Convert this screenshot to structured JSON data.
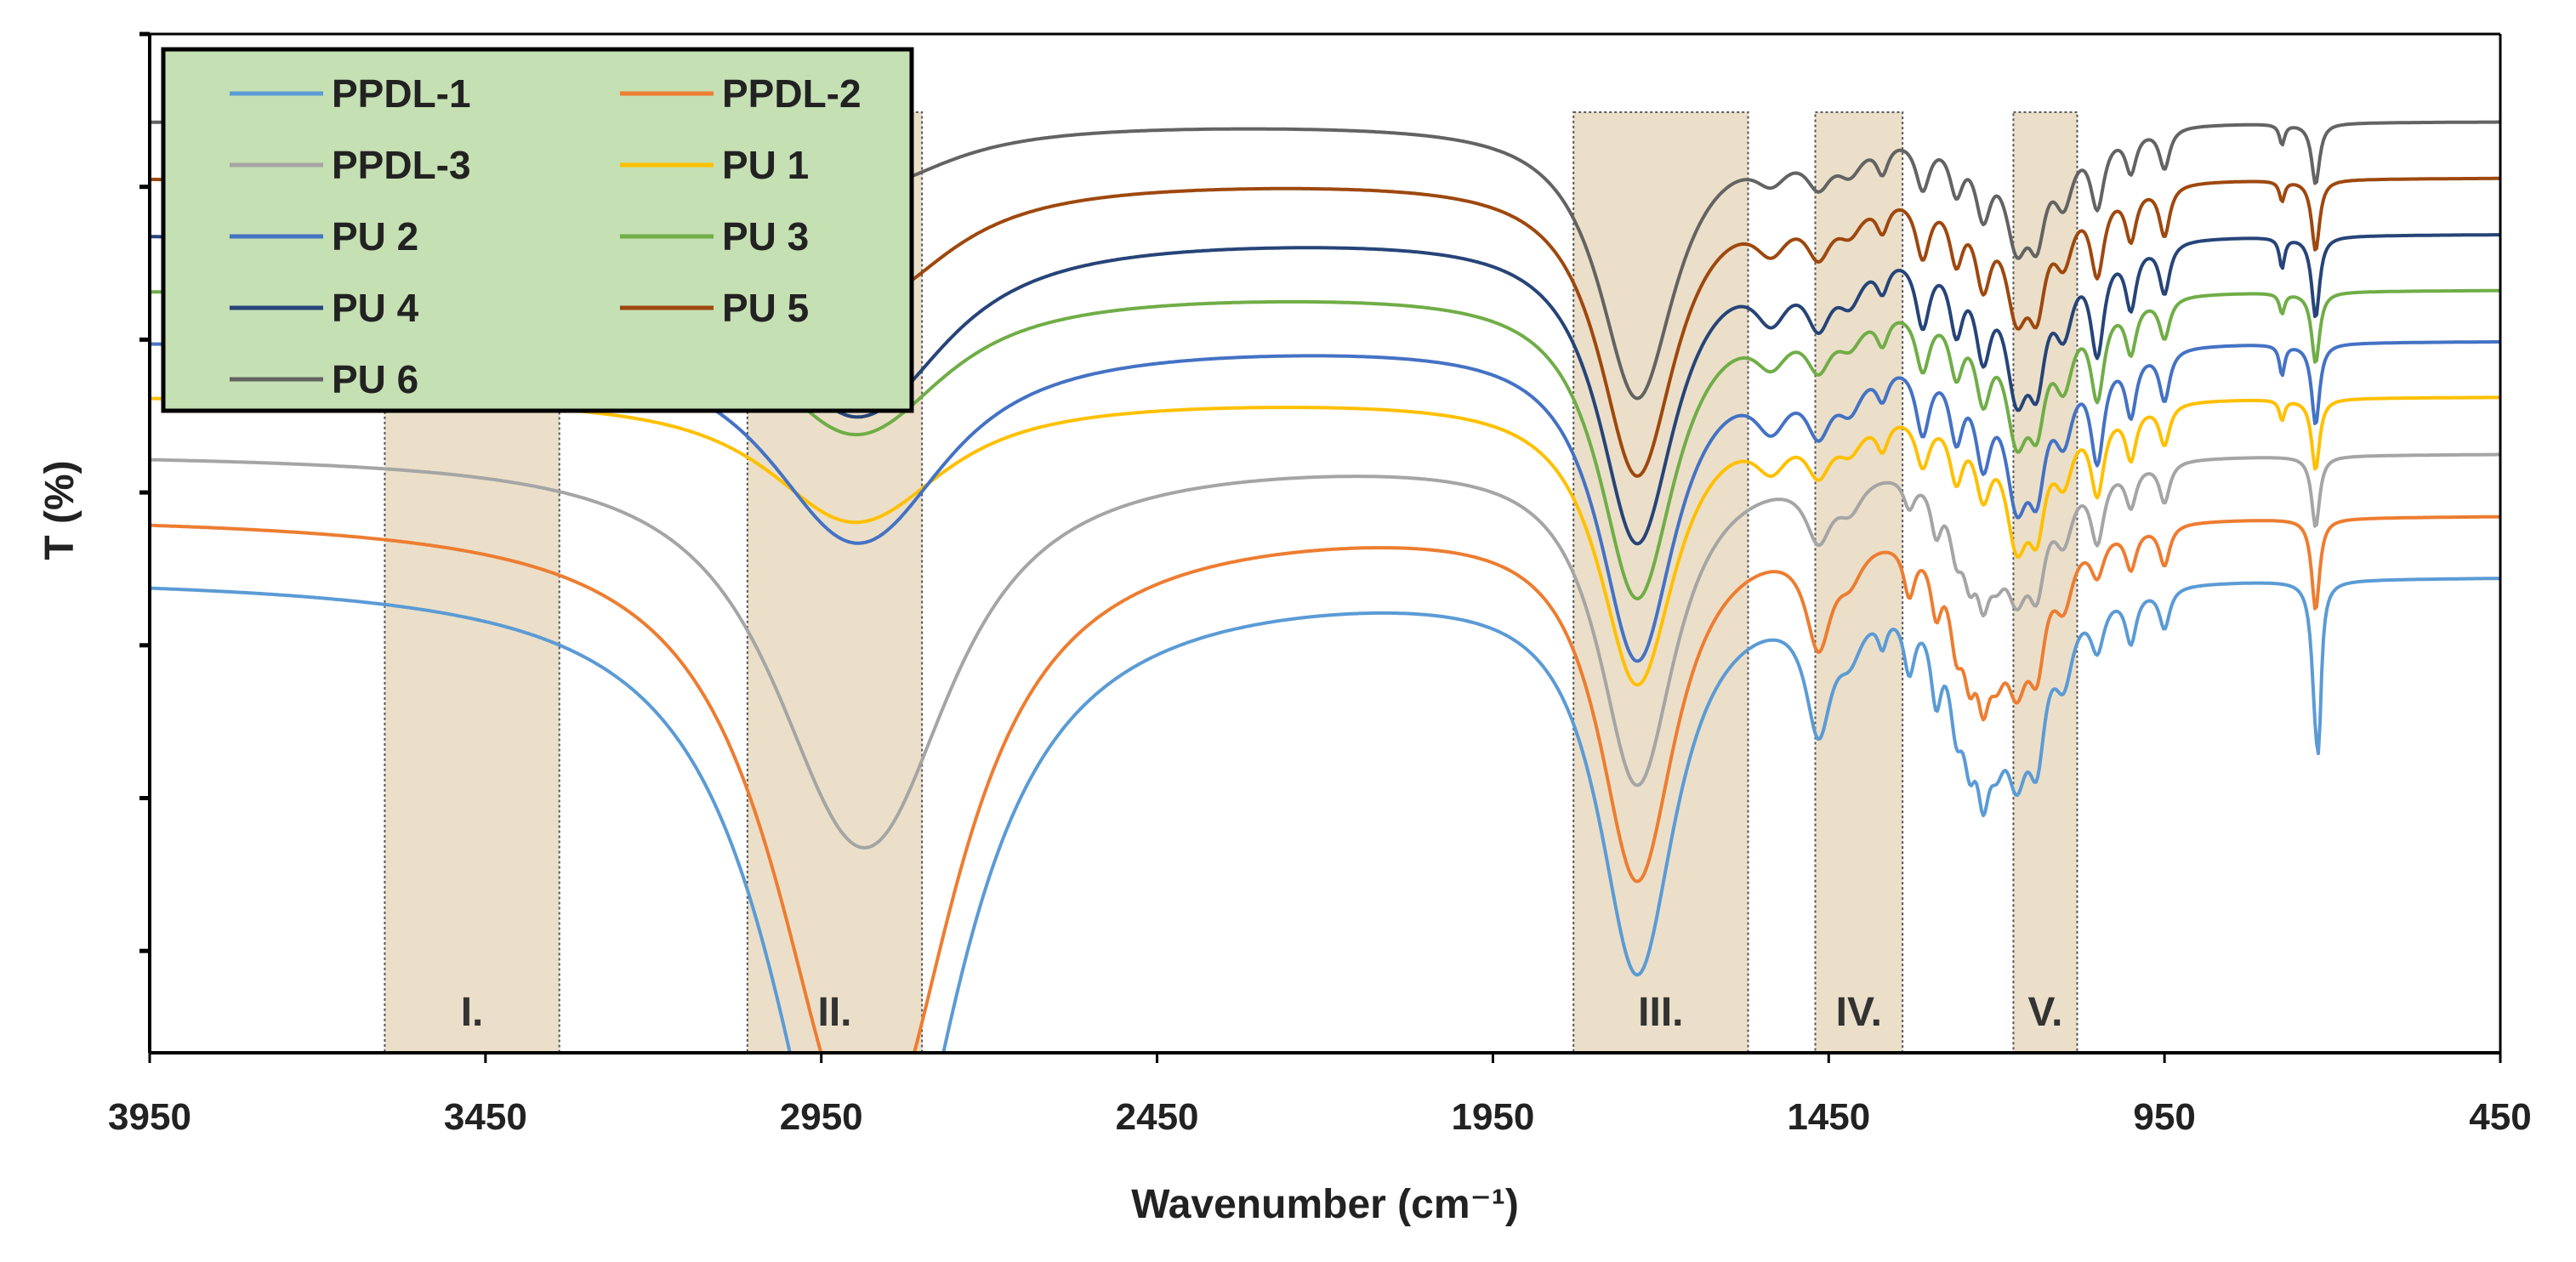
{
  "chart_data": {
    "type": "line",
    "title": "",
    "xlabel": "Wavenumber (cm⁻¹)",
    "ylabel": "T (%)",
    "xlim": [
      3950,
      450
    ],
    "x_reversed": true,
    "ylim": [
      0,
      100
    ],
    "xticks": [
      3950,
      3450,
      2950,
      2450,
      1950,
      1450,
      950,
      450
    ],
    "xtick_labels": [
      "3950",
      "3450",
      "2950",
      "2450",
      "1950",
      "1450",
      "950",
      "450"
    ],
    "y_ticks_unlabeled": [
      10,
      25,
      40,
      55,
      70,
      85,
      100
    ],
    "regions": [
      {
        "label": "I.",
        "from": 3600,
        "to": 3340
      },
      {
        "label": "II.",
        "from": 3060,
        "to": 2800
      },
      {
        "label": "III.",
        "from": 1830,
        "to": 1570
      },
      {
        "label": "IV.",
        "from": 1470,
        "to": 1340
      },
      {
        "label": "V.",
        "from": 1175,
        "to": 1080
      }
    ],
    "legend_position": "top-left",
    "series": [
      {
        "name": "PPDL-1",
        "color": "#5B9BD5",
        "baseline": 47,
        "peaks": [
          [
            2925,
            0.05,
            30
          ],
          [
            2855,
            0.05,
            45
          ],
          [
            1735,
            0.04,
            38
          ],
          [
            1465,
            0.016,
            12
          ],
          [
            1418,
            0.016,
            4
          ],
          [
            1370,
            0.006,
            3
          ],
          [
            1330,
            0.008,
            6
          ],
          [
            1290,
            0.008,
            8
          ],
          [
            1260,
            0.01,
            9
          ],
          [
            1240,
            0.01,
            10
          ],
          [
            1220,
            0.01,
            12
          ],
          [
            1200,
            0.014,
            9
          ],
          [
            1170,
            0.018,
            14
          ],
          [
            1140,
            0.014,
            12
          ],
          [
            1100,
            0.016,
            7
          ],
          [
            1050,
            0.012,
            5
          ],
          [
            1000,
            0.01,
            5
          ],
          [
            950,
            0.01,
            4
          ],
          [
            725,
            0.01,
            11
          ],
          [
            720,
            0.006,
            9
          ]
        ]
      },
      {
        "name": "PPDL-2",
        "color": "#ED7D31",
        "baseline": 53,
        "peaks": [
          [
            2925,
            0.05,
            26
          ],
          [
            2855,
            0.05,
            40
          ],
          [
            1735,
            0.04,
            35
          ],
          [
            1465,
            0.016,
            10
          ],
          [
            1418,
            0.016,
            3
          ],
          [
            1330,
            0.008,
            5
          ],
          [
            1290,
            0.008,
            6
          ],
          [
            1260,
            0.01,
            8
          ],
          [
            1240,
            0.01,
            9
          ],
          [
            1220,
            0.01,
            10
          ],
          [
            1200,
            0.014,
            8
          ],
          [
            1170,
            0.018,
            12
          ],
          [
            1140,
            0.014,
            10
          ],
          [
            1100,
            0.016,
            6
          ],
          [
            1050,
            0.012,
            4
          ],
          [
            1000,
            0.01,
            4
          ],
          [
            950,
            0.01,
            4
          ],
          [
            725,
            0.01,
            9
          ]
        ]
      },
      {
        "name": "PPDL-3",
        "color": "#A5A5A5",
        "baseline": 59,
        "peaks": [
          [
            2925,
            0.05,
            19
          ],
          [
            2855,
            0.05,
            22
          ],
          [
            1735,
            0.04,
            32
          ],
          [
            1465,
            0.016,
            6
          ],
          [
            1418,
            0.016,
            3
          ],
          [
            1330,
            0.008,
            3
          ],
          [
            1290,
            0.008,
            5
          ],
          [
            1260,
            0.01,
            6
          ],
          [
            1240,
            0.01,
            7
          ],
          [
            1220,
            0.01,
            8
          ],
          [
            1200,
            0.014,
            6
          ],
          [
            1170,
            0.018,
            10
          ],
          [
            1140,
            0.014,
            9
          ],
          [
            1100,
            0.016,
            6
          ],
          [
            1050,
            0.012,
            7
          ],
          [
            1000,
            0.01,
            4
          ],
          [
            950,
            0.01,
            4
          ],
          [
            725,
            0.01,
            7
          ]
        ]
      },
      {
        "name": "PU 1",
        "color": "#FFC000",
        "baseline": 64.5,
        "peaks": [
          [
            2925,
            0.05,
            8
          ],
          [
            2855,
            0.05,
            5
          ],
          [
            1735,
            0.04,
            28
          ],
          [
            1535,
            0.02,
            4
          ],
          [
            1465,
            0.016,
            5
          ],
          [
            1418,
            0.016,
            3
          ],
          [
            1370,
            0.008,
            3
          ],
          [
            1310,
            0.01,
            5
          ],
          [
            1260,
            0.01,
            6
          ],
          [
            1220,
            0.012,
            7
          ],
          [
            1170,
            0.018,
            12
          ],
          [
            1140,
            0.014,
            9
          ],
          [
            1100,
            0.016,
            6
          ],
          [
            1050,
            0.012,
            8
          ],
          [
            1000,
            0.01,
            5
          ],
          [
            950,
            0.01,
            4
          ],
          [
            775,
            0.006,
            2
          ],
          [
            725,
            0.01,
            7
          ]
        ]
      },
      {
        "name": "PU 2",
        "color": "#4472C4",
        "baseline": 70,
        "peaks": [
          [
            2925,
            0.05,
            12
          ],
          [
            2855,
            0.05,
            9
          ],
          [
            1735,
            0.04,
            31
          ],
          [
            1535,
            0.02,
            5
          ],
          [
            1465,
            0.016,
            6
          ],
          [
            1418,
            0.016,
            4
          ],
          [
            1370,
            0.008,
            3
          ],
          [
            1310,
            0.01,
            7
          ],
          [
            1260,
            0.01,
            7
          ],
          [
            1220,
            0.012,
            9
          ],
          [
            1170,
            0.018,
            13
          ],
          [
            1140,
            0.014,
            10
          ],
          [
            1100,
            0.016,
            7
          ],
          [
            1050,
            0.012,
            10
          ],
          [
            1000,
            0.01,
            6
          ],
          [
            950,
            0.01,
            5
          ],
          [
            775,
            0.006,
            3
          ],
          [
            725,
            0.01,
            8
          ]
        ]
      },
      {
        "name": "PU 3",
        "color": "#70AD47",
        "baseline": 75,
        "peaks": [
          [
            2925,
            0.05,
            9
          ],
          [
            2855,
            0.05,
            6
          ],
          [
            1735,
            0.04,
            30
          ],
          [
            1535,
            0.02,
            4
          ],
          [
            1465,
            0.016,
            5
          ],
          [
            1418,
            0.016,
            3
          ],
          [
            1370,
            0.008,
            3
          ],
          [
            1310,
            0.01,
            6
          ],
          [
            1260,
            0.01,
            6
          ],
          [
            1220,
            0.012,
            8
          ],
          [
            1170,
            0.018,
            12
          ],
          [
            1140,
            0.014,
            9
          ],
          [
            1100,
            0.016,
            7
          ],
          [
            1050,
            0.012,
            9
          ],
          [
            1000,
            0.01,
            5
          ],
          [
            950,
            0.01,
            4
          ],
          [
            775,
            0.006,
            2
          ],
          [
            725,
            0.01,
            7
          ]
        ]
      },
      {
        "name": "PU 4",
        "color": "#264478",
        "baseline": 80.5,
        "peaks": [
          [
            2925,
            0.05,
            11
          ],
          [
            2855,
            0.05,
            8
          ],
          [
            1735,
            0.04,
            30
          ],
          [
            1535,
            0.02,
            5
          ],
          [
            1465,
            0.016,
            6
          ],
          [
            1418,
            0.016,
            4
          ],
          [
            1370,
            0.008,
            3
          ],
          [
            1310,
            0.01,
            7
          ],
          [
            1260,
            0.01,
            7
          ],
          [
            1220,
            0.012,
            9
          ],
          [
            1170,
            0.018,
            13
          ],
          [
            1140,
            0.014,
            10
          ],
          [
            1100,
            0.016,
            7
          ],
          [
            1050,
            0.012,
            10
          ],
          [
            1000,
            0.01,
            6
          ],
          [
            950,
            0.01,
            5
          ],
          [
            775,
            0.006,
            3
          ],
          [
            725,
            0.01,
            8
          ]
        ]
      },
      {
        "name": "PU 5",
        "color": "#9E480E",
        "baseline": 86,
        "peaks": [
          [
            2925,
            0.05,
            7
          ],
          [
            2855,
            0.05,
            6
          ],
          [
            1735,
            0.04,
            29
          ],
          [
            1535,
            0.02,
            4
          ],
          [
            1465,
            0.016,
            5
          ],
          [
            1418,
            0.016,
            3
          ],
          [
            1370,
            0.008,
            3
          ],
          [
            1310,
            0.01,
            6
          ],
          [
            1260,
            0.01,
            6
          ],
          [
            1220,
            0.012,
            8
          ],
          [
            1170,
            0.018,
            11
          ],
          [
            1140,
            0.014,
            9
          ],
          [
            1100,
            0.016,
            6
          ],
          [
            1050,
            0.012,
            8
          ],
          [
            1000,
            0.01,
            5
          ],
          [
            950,
            0.01,
            5
          ],
          [
            775,
            0.006,
            2
          ],
          [
            725,
            0.01,
            7
          ]
        ]
      },
      {
        "name": "PU 6",
        "color": "#636363",
        "baseline": 91.5,
        "peaks": [
          [
            2925,
            0.05,
            4
          ],
          [
            2855,
            0.05,
            3
          ],
          [
            1735,
            0.04,
            27
          ],
          [
            1535,
            0.02,
            3
          ],
          [
            1465,
            0.016,
            4
          ],
          [
            1418,
            0.016,
            3
          ],
          [
            1370,
            0.008,
            3
          ],
          [
            1310,
            0.01,
            5
          ],
          [
            1260,
            0.01,
            5
          ],
          [
            1220,
            0.012,
            7
          ],
          [
            1170,
            0.018,
            10
          ],
          [
            1140,
            0.014,
            8
          ],
          [
            1100,
            0.016,
            6
          ],
          [
            1050,
            0.012,
            7
          ],
          [
            1000,
            0.01,
            4
          ],
          [
            950,
            0.01,
            4
          ],
          [
            775,
            0.006,
            2
          ],
          [
            725,
            0.01,
            6
          ]
        ]
      }
    ]
  },
  "colors": {
    "legend_background": "#C5E0B3",
    "region_fill": "#E8D9C0",
    "axis": "#000000"
  }
}
